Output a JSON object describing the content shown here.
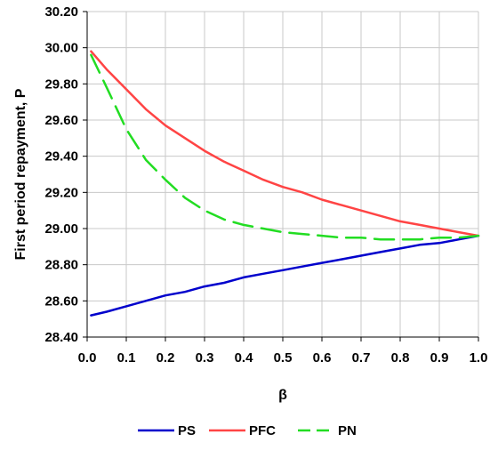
{
  "chart_data": {
    "type": "line",
    "xlabel": "β",
    "ylabel": "First period repayment, P",
    "xlim": [
      0,
      1.0
    ],
    "ylim": [
      28.4,
      30.2
    ],
    "x_ticks": [
      "0.0",
      "0.1",
      "0.2",
      "0.3",
      "0.4",
      "0.5",
      "0.6",
      "0.7",
      "0.8",
      "0.9",
      "1.0"
    ],
    "y_ticks": [
      "28.40",
      "28.60",
      "28.80",
      "29.00",
      "29.20",
      "29.40",
      "29.60",
      "29.80",
      "30.00",
      "30.20"
    ],
    "grid": true,
    "legend_position": "bottom",
    "x": [
      0.01,
      0.05,
      0.1,
      0.15,
      0.2,
      0.25,
      0.3,
      0.35,
      0.4,
      0.45,
      0.5,
      0.55,
      0.6,
      0.65,
      0.7,
      0.75,
      0.8,
      0.85,
      0.9,
      0.95,
      1.0
    ],
    "series": [
      {
        "name": "PS",
        "color": "#0000cc",
        "dash": "solid",
        "values": [
          28.52,
          28.54,
          28.57,
          28.6,
          28.63,
          28.65,
          28.68,
          28.7,
          28.73,
          28.75,
          28.77,
          28.79,
          28.81,
          28.83,
          28.85,
          28.87,
          28.89,
          28.91,
          28.92,
          28.94,
          28.96
        ]
      },
      {
        "name": "PFC",
        "color": "#ff4444",
        "dash": "solid",
        "values": [
          29.98,
          29.88,
          29.77,
          29.66,
          29.57,
          29.5,
          29.43,
          29.37,
          29.32,
          29.27,
          29.23,
          29.2,
          29.16,
          29.13,
          29.1,
          29.07,
          29.04,
          29.02,
          29.0,
          28.98,
          28.96
        ]
      },
      {
        "name": "PN",
        "color": "#22dd22",
        "dash": "dashed",
        "values": [
          29.96,
          29.78,
          29.55,
          29.38,
          29.27,
          29.17,
          29.1,
          29.05,
          29.02,
          29.0,
          28.98,
          28.97,
          28.96,
          28.95,
          28.95,
          28.94,
          28.94,
          28.94,
          28.95,
          28.95,
          28.96
        ]
      }
    ]
  }
}
